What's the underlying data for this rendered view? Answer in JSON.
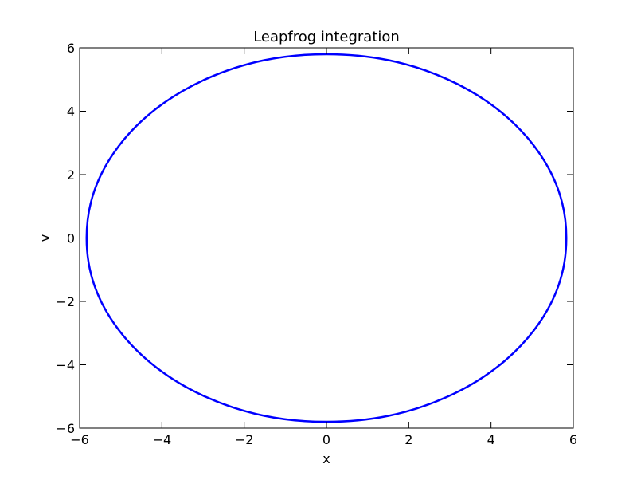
{
  "chart_data": {
    "type": "line",
    "title": "Leapfrog integration",
    "xlabel": "x",
    "ylabel": "v",
    "xlim": [
      -6,
      6
    ],
    "ylim": [
      -6,
      6
    ],
    "xticks": [
      -6,
      -4,
      -2,
      0,
      2,
      4,
      6
    ],
    "yticks": [
      -6,
      -4,
      -2,
      0,
      2,
      4,
      6
    ],
    "xtick_labels": [
      "−6",
      "−4",
      "−2",
      "0",
      "2",
      "4",
      "6"
    ],
    "ytick_labels": [
      "−6",
      "−4",
      "−2",
      "0",
      "2",
      "4",
      "6"
    ],
    "grid": false,
    "series": [
      {
        "color": "#0000ff",
        "x": [
          5.83,
          5.64,
          5.05,
          4.12,
          2.92,
          1.51,
          0.0,
          -1.51,
          -2.92,
          -4.12,
          -5.05,
          -5.64,
          -5.83,
          -5.64,
          -5.05,
          -4.12,
          -2.92,
          -1.51,
          0.0,
          1.51,
          2.92,
          4.12,
          5.05,
          5.64,
          5.83
        ],
        "y": [
          0.0,
          1.5,
          2.9,
          4.1,
          5.02,
          5.61,
          5.8,
          5.61,
          5.02,
          4.1,
          2.9,
          1.5,
          0.0,
          -1.5,
          -2.9,
          -4.1,
          -5.02,
          -5.61,
          -5.8,
          -5.61,
          -5.02,
          -4.1,
          -2.9,
          -1.5,
          0.0
        ]
      }
    ]
  }
}
